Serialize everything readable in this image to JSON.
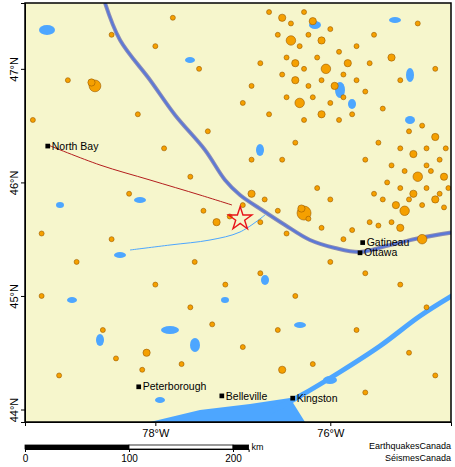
{
  "chart_data": {
    "type": "map",
    "xlim": [
      -79.49,
      -74.62
    ],
    "ylim": [
      43.89,
      47.58
    ],
    "xticks": [
      {
        "value": -78,
        "label": "78°W"
      },
      {
        "value": -76,
        "label": "76°W"
      }
    ],
    "yticks": [
      {
        "value": 44,
        "label": "44°N"
      },
      {
        "value": 45,
        "label": "45°N"
      },
      {
        "value": 46,
        "label": "46°N"
      },
      {
        "value": 47,
        "label": "47°N"
      }
    ],
    "earthquakes": {
      "x": [
        -78.69,
        -78.73,
        -76.7,
        -76.55,
        -76.45,
        -76.3,
        -76.2,
        -76.6,
        -76.45,
        -76.35,
        -76.25,
        -76.1,
        -76.0,
        -76.5,
        -76.4,
        -76.3,
        -76.15,
        -76.05,
        -75.9,
        -75.8,
        -75.7,
        -76.55,
        -76.4,
        -76.25,
        -76.1,
        -75.95,
        -75.85,
        -75.7,
        -76.5,
        -76.35,
        -76.2,
        -76.0,
        -75.85,
        -75.6,
        -76.7,
        -76.3,
        -76.1,
        -75.9,
        -75.75,
        -75.55,
        -75.5,
        -76.8,
        -76.9,
        -75.3,
        -75.2,
        -75.1,
        -74.95,
        -74.8,
        -75.2,
        -75.05,
        -74.9,
        -74.75,
        -75.3,
        -75.15,
        -75.0,
        -74.85,
        -74.7,
        -75.35,
        -75.2,
        -75.05,
        -74.9,
        -74.75,
        -74.65,
        -75.4,
        -75.25,
        -75.1,
        -74.95,
        -74.8,
        -74.7,
        -75.5,
        -75.6,
        -75.45,
        -74.68,
        -74.9,
        -75.15,
        -76.3,
        -76.33,
        -76.25,
        -75.55,
        -74.95,
        -75.3,
        -75.2,
        -75.45,
        -75.75,
        -75.85,
        -77.3,
        -77.15,
        -77.0,
        -76.9,
        -76.75,
        -76.6,
        -76.8,
        -77.45,
        -76.5,
        -76.1,
        -76.0,
        -76.15,
        -76.55,
        -76.4,
        -76.9,
        -77.6,
        -77.9,
        -78.2,
        -77.4,
        -77.0,
        -77.5,
        -78.0,
        -78.5,
        -77.8,
        -79.0,
        -79.3,
        -79.3,
        -78.9,
        -78.5,
        -78.0,
        -77.6,
        -77.2,
        -76.8,
        -76.4,
        -76.0,
        -75.6,
        -75.2,
        -74.9,
        -76.6,
        -77.0,
        -77.7,
        -78.1,
        -78.15,
        -78.6,
        -79.1,
        -76.2,
        -75.7,
        -75.1,
        -74.8,
        -76.55,
        -77.35,
        -75.6,
        -77.55,
        -78.3,
        -79.4,
        -75.0,
        -74.8,
        -75.4,
        -78.45
      ],
      "y": [
        46.85,
        46.88,
        47.5,
        47.45,
        47.4,
        47.5,
        47.42,
        47.3,
        47.25,
        47.2,
        47.3,
        47.25,
        47.35,
        47.1,
        47.05,
        47.0,
        47.1,
        47.0,
        47.15,
        47.05,
        47.2,
        46.95,
        46.9,
        46.85,
        46.9,
        46.85,
        46.95,
        46.9,
        46.75,
        46.7,
        46.75,
        46.7,
        46.75,
        46.8,
        46.6,
        46.55,
        46.6,
        46.55,
        46.6,
        47.05,
        47.3,
        47.05,
        46.85,
        47.1,
        46.9,
        46.45,
        46.5,
        46.4,
        46.3,
        46.25,
        46.3,
        46.2,
        46.15,
        46.1,
        46.05,
        46.1,
        46.05,
        46.0,
        45.95,
        45.9,
        45.95,
        45.9,
        45.95,
        45.85,
        45.8,
        45.85,
        45.8,
        45.85,
        45.78,
        45.9,
        46.2,
        46.35,
        46.3,
        46.15,
        45.75,
        45.73,
        45.77,
        45.68,
        45.65,
        45.5,
        45.65,
        45.6,
        45.62,
        45.58,
        45.5,
        45.65,
        45.7,
        45.8,
        45.9,
        45.85,
        45.75,
        45.65,
        45.75,
        45.55,
        45.6,
        45.85,
        45.95,
        46.2,
        46.35,
        46.2,
        46.05,
        46.3,
        46.6,
        46.45,
        46.7,
        47.0,
        47.2,
        47.3,
        47.45,
        46.9,
        45.55,
        45.0,
        45.3,
        45.5,
        45.1,
        44.9,
        45.1,
        45.2,
        45.0,
        45.3,
        45.2,
        45.1,
        44.9,
        44.7,
        44.55,
        44.4,
        44.5,
        44.35,
        44.7,
        44.3,
        44.4,
        44.7,
        44.5,
        44.3,
        44.35,
        44.75,
        44.15,
        45.3,
        45.9,
        46.55,
        47.4,
        47.0,
        46.65,
        44.45
      ],
      "size": [
        3.5,
        2.5,
        2,
        2.5,
        2,
        2,
        2.5,
        2,
        3,
        2,
        2,
        2.5,
        2,
        2,
        2.5,
        2,
        2,
        3,
        2,
        2.5,
        2,
        2,
        2.5,
        2,
        2,
        2.5,
        2,
        2,
        2,
        3,
        2,
        2,
        2,
        2,
        2,
        2,
        2.5,
        2,
        2,
        2,
        2,
        2,
        2,
        2.5,
        2,
        2,
        2,
        2.5,
        2,
        2.5,
        2,
        2,
        2,
        2,
        3,
        2,
        2.5,
        2,
        2,
        2.5,
        2,
        2,
        2,
        2,
        2.5,
        2,
        2,
        2.5,
        2,
        2,
        2,
        2,
        2,
        2,
        3,
        4,
        2.5,
        2,
        2,
        3,
        2,
        2.5,
        2,
        2,
        2,
        2.5,
        2,
        2,
        2.5,
        2,
        2,
        2,
        2,
        2,
        2,
        2,
        2,
        2,
        2,
        2,
        2,
        2,
        2,
        2,
        2,
        2,
        2,
        2,
        2,
        2,
        2,
        2,
        2,
        2,
        2,
        2,
        2,
        2,
        2,
        2,
        2,
        2,
        2,
        2,
        2,
        2,
        2.5,
        2,
        2,
        2,
        2,
        2,
        2,
        2,
        2.5,
        2,
        2,
        2,
        2,
        2,
        2,
        2,
        2,
        2
      ],
      "color": "#f5a000",
      "marker": "circle"
    },
    "event": {
      "x": -77.03,
      "y": 45.68,
      "color": "#e8141a",
      "marker": "star"
    },
    "cities": {
      "names": [
        "North Bay",
        "Gatineau",
        "Ottawa",
        "Peterborough",
        "Belleville",
        "Kingston"
      ],
      "x": [
        -79.23,
        -75.63,
        -75.66,
        -78.19,
        -77.24,
        -76.43
      ],
      "y": [
        46.32,
        45.47,
        45.38,
        44.2,
        44.12,
        44.1
      ],
      "color": "#000000",
      "marker": "square"
    },
    "scale_bar": {
      "range": [
        0,
        215
      ],
      "ticks": [
        0,
        100,
        200
      ],
      "unit": "km"
    },
    "credits": [
      "EarthquakesCanada",
      "SéismesCanada"
    ]
  }
}
